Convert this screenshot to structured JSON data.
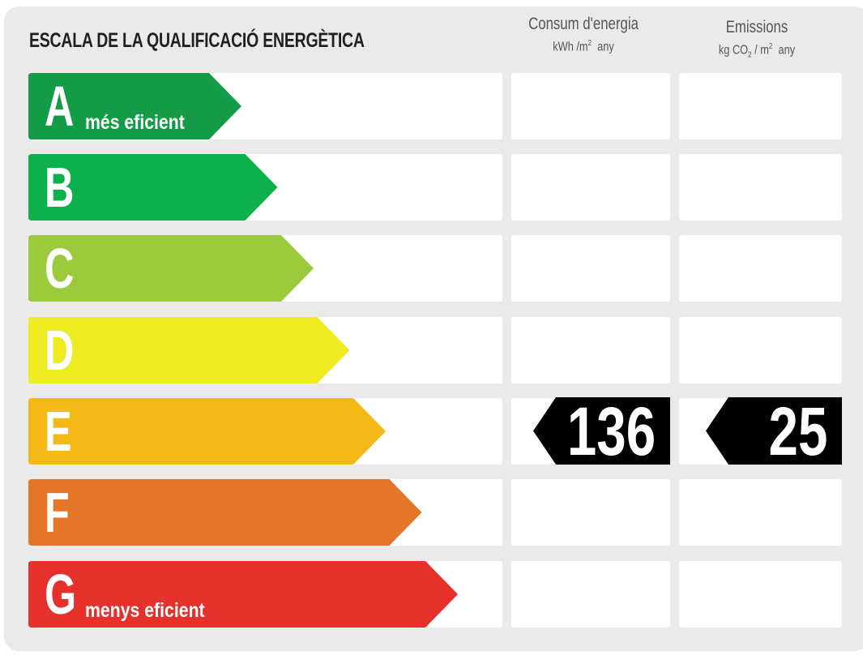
{
  "title": "ESCALA DE LA QUALIFICACIÓ ENERGÈTICA",
  "columns": {
    "energy": {
      "label": "Consum d'energia",
      "unit_pre": "kWh /m",
      "unit_sup": "2",
      "unit_post": "any"
    },
    "emissions": {
      "label": "Emissions",
      "unit_pre": "kg CO",
      "unit_sub": "2",
      "unit_mid": " / m",
      "unit_sup": "2",
      "unit_post": "any"
    }
  },
  "ratings": [
    {
      "letter": "A",
      "sub": "més eficient",
      "color": "#139b48"
    },
    {
      "letter": "B",
      "sub": "",
      "color": "#0db14b"
    },
    {
      "letter": "C",
      "sub": "",
      "color": "#9bcb3c"
    },
    {
      "letter": "D",
      "sub": "",
      "color": "#eeeb22"
    },
    {
      "letter": "E",
      "sub": "",
      "color": "#f2b917"
    },
    {
      "letter": "F",
      "sub": "",
      "color": "#e37727"
    },
    {
      "letter": "G",
      "sub": "menys eficient",
      "color": "#e5302b"
    }
  ],
  "result": {
    "rating": "E",
    "energy_value": "136",
    "emissions_value": "25",
    "marker_color": "#000000"
  }
}
